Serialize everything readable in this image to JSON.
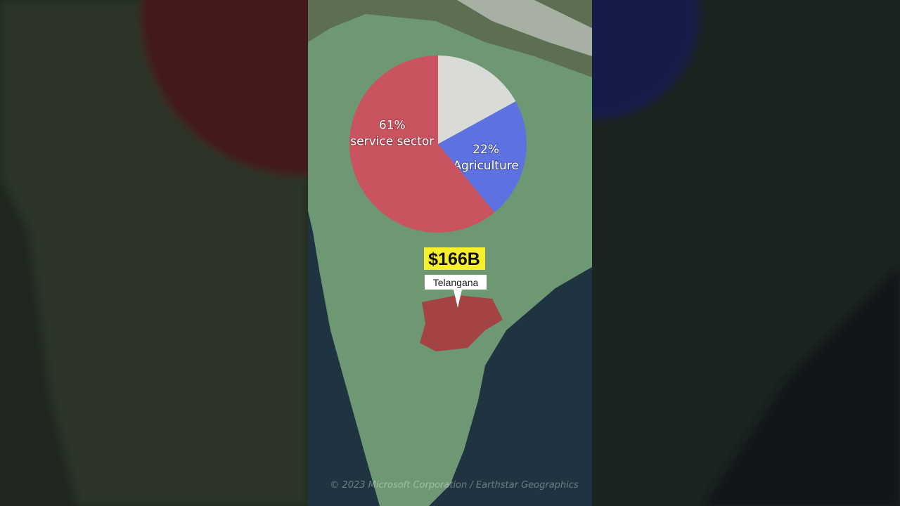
{
  "chart_data": {
    "type": "pie",
    "categories": [
      null,
      "Agriculture",
      "service sector"
    ],
    "values": [
      17,
      22,
      61
    ],
    "value_labels": [
      null,
      "22%",
      "61%"
    ],
    "colors": [
      "#d9dcd6",
      "#5d72e0",
      "#c9535e"
    ]
  },
  "map": {
    "value_label": "$166B",
    "region": "Telangana",
    "attribution": "© 2023 Microsoft Corporation / Earthstar Geographics"
  }
}
